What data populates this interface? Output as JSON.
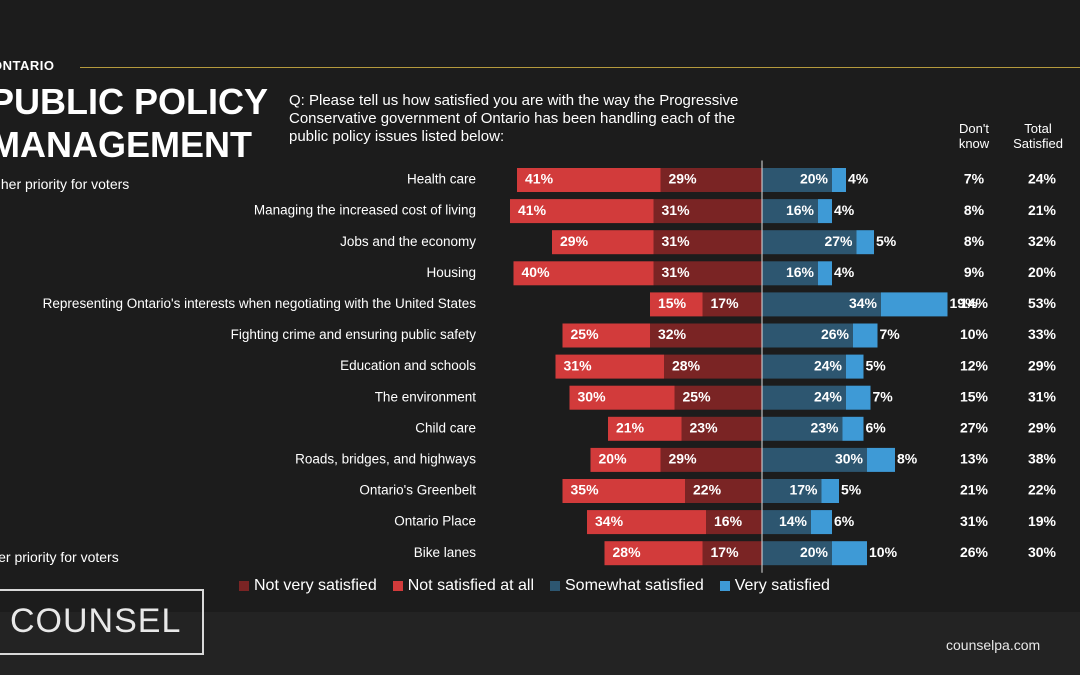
{
  "header": {
    "region": "ONTARIO",
    "title": "PUBLIC POLICY\nMANAGEMENT",
    "question": "Q: Please tell us how satisfied you are with the way the Progressive Conservative government of Ontario has been handling each of the public policy issues listed below:",
    "col_dont_know": "Don't\nknow",
    "col_total_satisfied": "Total\nSatisfied",
    "priority_high": "igher priority for voters",
    "priority_low": "wer priority for voters"
  },
  "colors": {
    "not_very_satisfied": "#7a2424",
    "not_satisfied_at_all": "#d23b3b",
    "somewhat_satisfied": "#2d5670",
    "very_satisfied": "#3e9ad6"
  },
  "chart_data": {
    "type": "bar",
    "orientation": "horizontal diverging stacked",
    "categories": [
      "Health care",
      "Managing the increased cost of living",
      "Jobs and the economy",
      "Housing",
      "Representing Ontario's interests when negotiating with the United States",
      "Fighting crime and ensuring public safety",
      "Education and schools",
      "The environment",
      "Child care",
      "Roads, bridges, and highways",
      "Ontario's Greenbelt",
      "Ontario Place",
      "Bike lanes"
    ],
    "series": [
      {
        "name": "Not very satisfied",
        "values": [
          29,
          31,
          31,
          31,
          17,
          32,
          28,
          25,
          23,
          29,
          22,
          16,
          17
        ]
      },
      {
        "name": "Not satisfied at all",
        "values": [
          41,
          41,
          29,
          40,
          15,
          25,
          31,
          30,
          21,
          20,
          35,
          34,
          28
        ]
      },
      {
        "name": "Somewhat satisfied",
        "values": [
          20,
          16,
          27,
          16,
          34,
          26,
          24,
          24,
          23,
          30,
          17,
          14,
          20
        ]
      },
      {
        "name": "Very satisfied",
        "values": [
          4,
          4,
          5,
          4,
          19,
          7,
          5,
          7,
          6,
          8,
          5,
          6,
          10
        ]
      }
    ],
    "dont_know": [
      7,
      8,
      8,
      9,
      14,
      10,
      12,
      15,
      27,
      13,
      21,
      31,
      26
    ],
    "total_satisfied": [
      24,
      21,
      32,
      20,
      53,
      33,
      29,
      31,
      29,
      38,
      22,
      19,
      30
    ],
    "value_suffix": "%",
    "legend": "bottom"
  },
  "footer": {
    "logo": "COUNSEL",
    "website": "counselpa.com"
  }
}
